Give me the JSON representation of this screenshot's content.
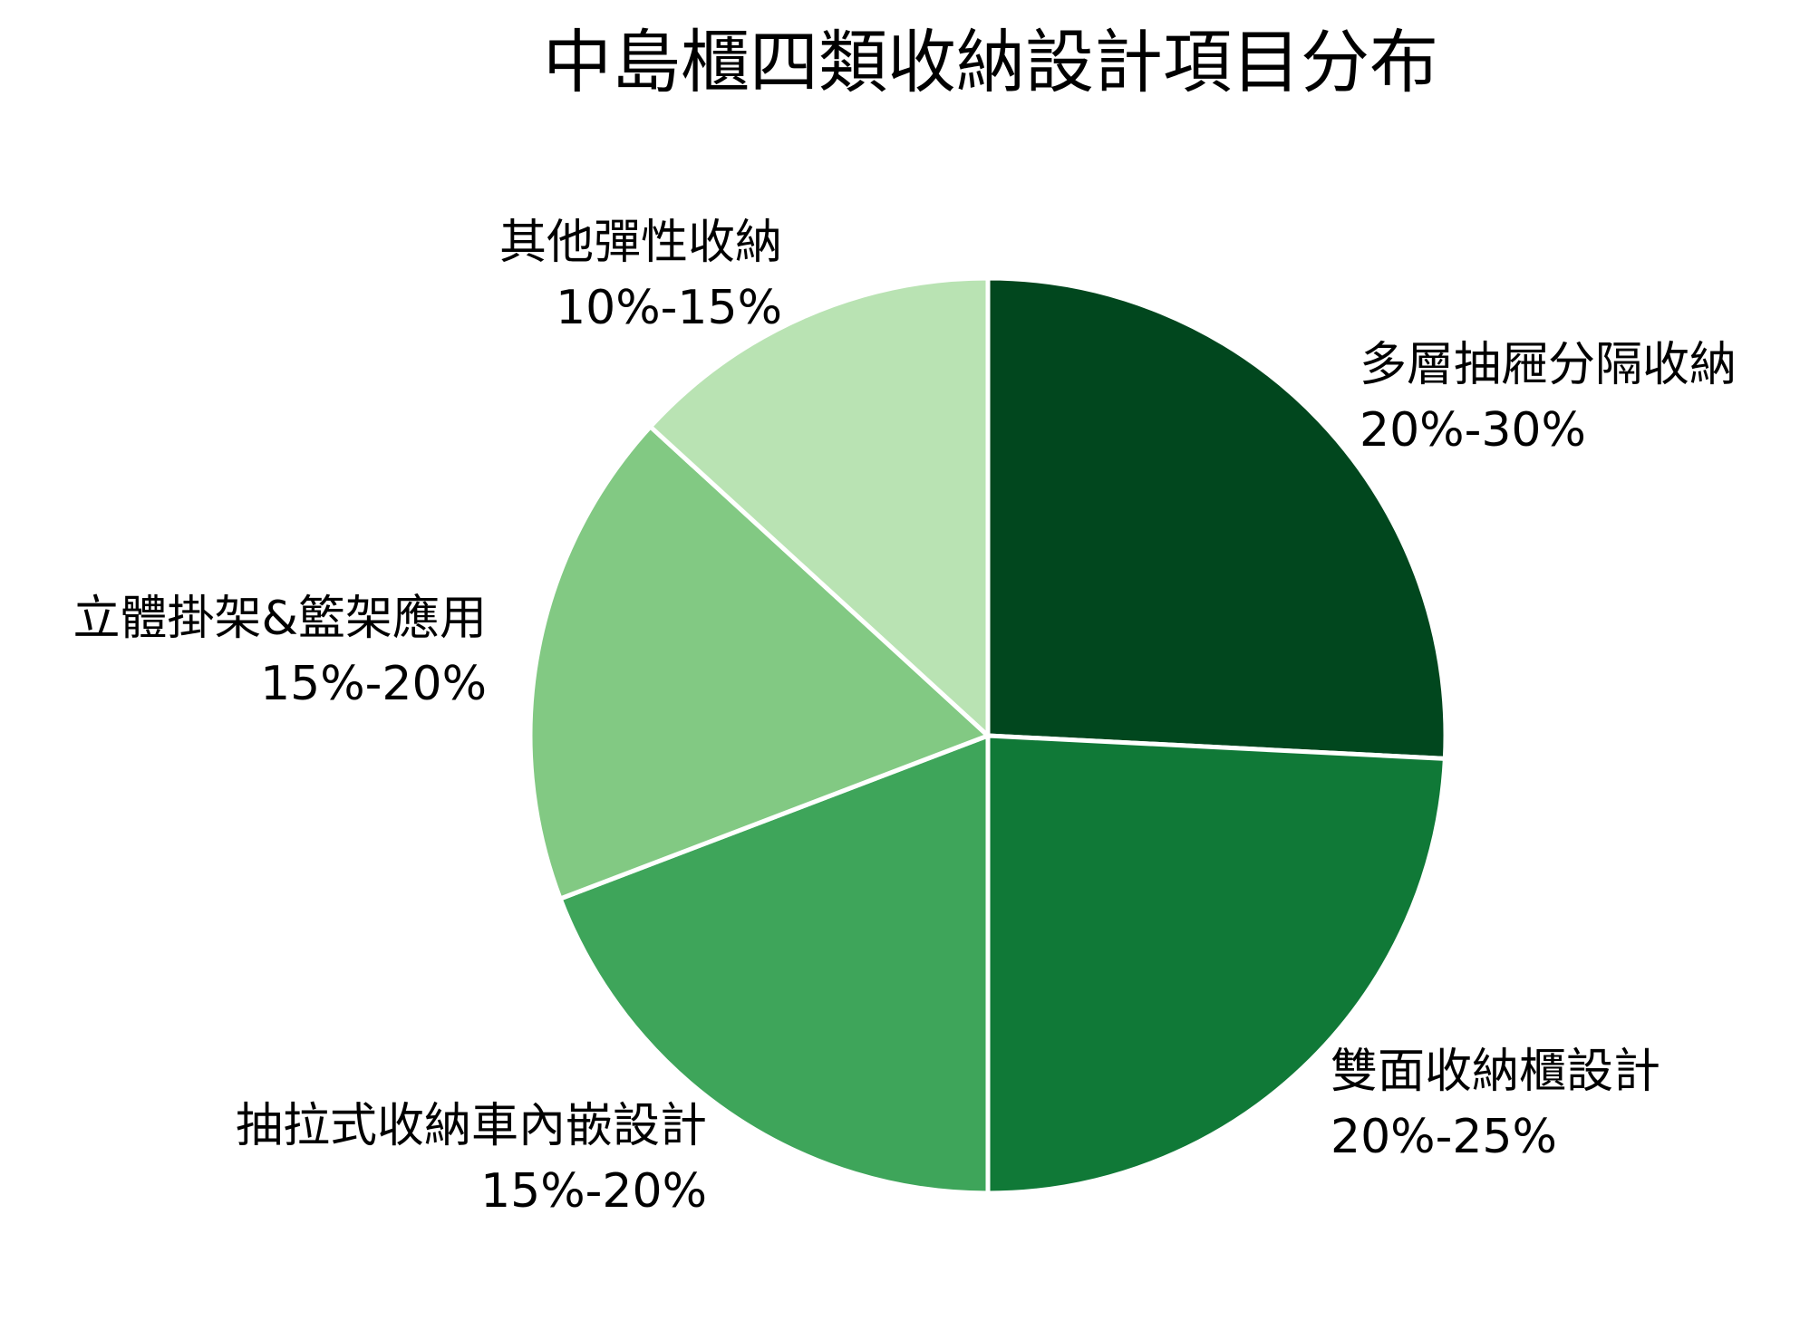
{
  "chart_data": {
    "type": "pie",
    "title": "中島櫃四類收納設計項目分布",
    "start_angle_deg": 0,
    "direction": "clockwise",
    "slices": [
      {
        "name": "多層抽屜分隔收納",
        "range_label": "20%-30%",
        "value": 25.8,
        "color": "#01471E"
      },
      {
        "name": "雙面收納櫃設計",
        "range_label": "20%-25%",
        "value": 24.2,
        "color": "#107937"
      },
      {
        "name": "抽拉式收納車內嵌設計",
        "range_label": "15%-20%",
        "value": 19.2,
        "color": "#3EA55A"
      },
      {
        "name": "立體掛架&籃架應用",
        "range_label": "15%-20%",
        "value": 17.6,
        "color": "#82C983"
      },
      {
        "name": "其他彈性收納",
        "range_label": "10%-15%",
        "value": 13.2,
        "color": "#B9E3B3"
      }
    ]
  }
}
